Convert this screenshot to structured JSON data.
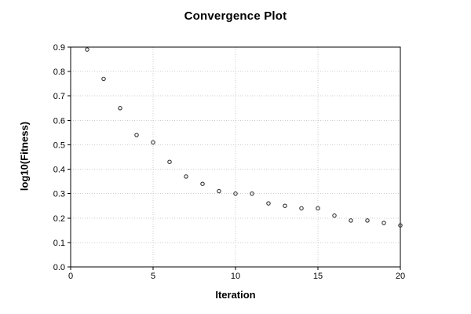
{
  "chart_data": {
    "type": "scatter",
    "title": "Convergence Plot",
    "xlabel": "Iteration",
    "ylabel": "log10(Fitness)",
    "x": [
      1,
      2,
      3,
      4,
      5,
      6,
      7,
      8,
      9,
      10,
      11,
      12,
      13,
      14,
      15,
      16,
      17,
      18,
      19,
      20
    ],
    "y": [
      0.89,
      0.77,
      0.65,
      0.54,
      0.51,
      0.43,
      0.37,
      0.34,
      0.31,
      0.3,
      0.3,
      0.26,
      0.25,
      0.24,
      0.24,
      0.21,
      0.19,
      0.19,
      0.18,
      0.17
    ],
    "xlim": [
      0,
      20
    ],
    "ylim": [
      0,
      0.9
    ],
    "xticks": [
      0,
      5,
      10,
      15,
      20
    ],
    "xtick_labels": [
      "0",
      "5",
      "10",
      "15",
      "20"
    ],
    "yticks": [
      0,
      0.1,
      0.2,
      0.3,
      0.4,
      0.5,
      0.6,
      0.7,
      0.8,
      0.9
    ],
    "ytick_labels": [
      "0.0",
      "0.1",
      "0.2",
      "0.3",
      "0.4",
      "0.5",
      "0.6",
      "0.7",
      "0.8",
      "0.9"
    ],
    "grid": true,
    "grid_style": "dotted",
    "legend": false,
    "marker": "open-circle",
    "style": {
      "background": "#ffffff",
      "axis_color": "#000000",
      "grid_color": "#cccccc",
      "marker_color": "#333333",
      "text_color": "#000000"
    }
  }
}
